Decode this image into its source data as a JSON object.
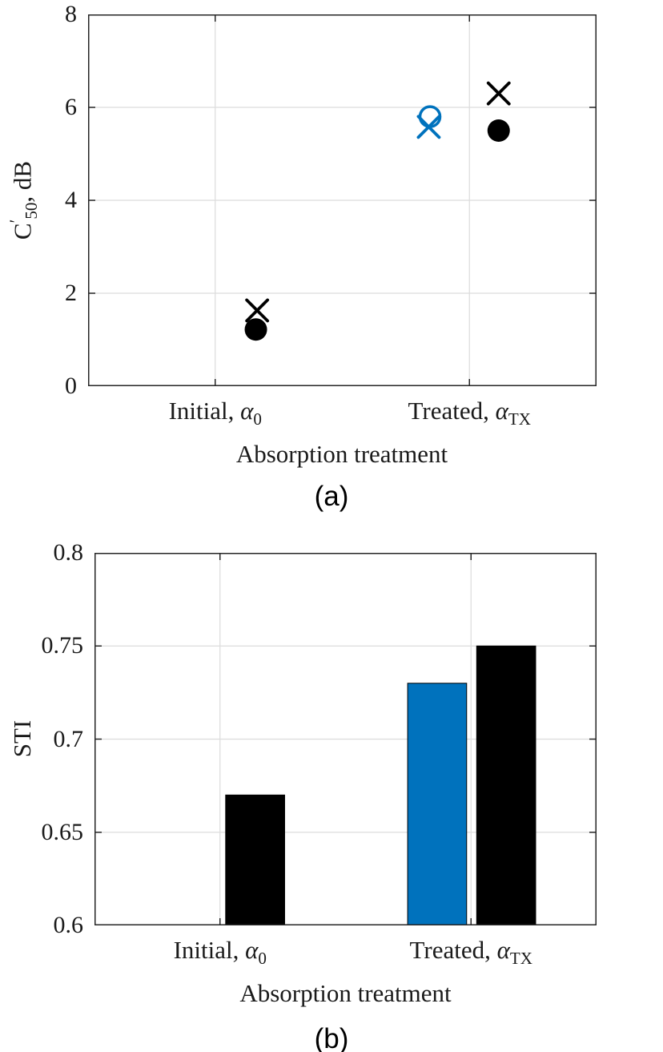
{
  "figure": {
    "captions": [
      "(a)",
      "(b)"
    ],
    "colors": {
      "blue": "#0072BD",
      "black": "#000000",
      "grid": "#dcdcdc",
      "axis": "#262626"
    }
  },
  "chart_data": [
    {
      "type": "scatter",
      "title": "",
      "ylabel_parts": {
        "base": "C",
        "prime": "′",
        "sub": "50",
        "suffix": ", dB"
      },
      "xlabel": "Absorption treatment",
      "xticklabels": [
        {
          "prefix": "Initial, ",
          "symbol": "α",
          "sub": "0"
        },
        {
          "prefix": "Treated, ",
          "symbol": "α",
          "sub": "TX"
        }
      ],
      "xlim": [
        0.5,
        2.5
      ],
      "category_x": [
        1,
        2
      ],
      "ylim": [
        0,
        8
      ],
      "yticks": [
        0,
        2,
        4,
        6,
        8
      ],
      "ytick_labels": [
        "0",
        "2",
        "4",
        "6",
        "8"
      ],
      "grid": true,
      "legend": "none",
      "series": [
        {
          "name": "black-x-marker",
          "marker": "x",
          "color": "#000000",
          "points": [
            {
              "x": 1.165,
              "y": 1.63
            },
            {
              "x": 2.115,
              "y": 6.3
            }
          ]
        },
        {
          "name": "black-filled-circle",
          "marker": "circle-filled",
          "color": "#000000",
          "points": [
            {
              "x": 1.16,
              "y": 1.22
            },
            {
              "x": 2.115,
              "y": 5.5
            }
          ]
        },
        {
          "name": "blue-open-circle",
          "marker": "circle-open",
          "color": "#0072BD",
          "points": [
            {
              "x": 1.845,
              "y": 5.8
            }
          ]
        },
        {
          "name": "blue-x-marker",
          "marker": "x",
          "color": "#0072BD",
          "points": [
            {
              "x": 1.84,
              "y": 5.58
            }
          ]
        }
      ]
    },
    {
      "type": "bar",
      "title": "",
      "ylabel": "STI",
      "xlabel": "Absorption treatment",
      "xticklabels": [
        {
          "prefix": "Initial, ",
          "symbol": "α",
          "sub": "0"
        },
        {
          "prefix": "Treated, ",
          "symbol": "α",
          "sub": "TX"
        }
      ],
      "xlim": [
        0.5,
        2.5
      ],
      "category_x": [
        1,
        2
      ],
      "categories": [
        "Initial",
        "Treated"
      ],
      "ylim": [
        0.6,
        0.8
      ],
      "yticks": [
        0.6,
        0.65,
        0.7,
        0.75,
        0.8
      ],
      "ytick_labels": [
        "0.6",
        "0.65",
        "0.7",
        "0.75",
        "0.8"
      ],
      "grid": true,
      "bar_width": 0.235,
      "series": [
        {
          "name": "blue-bars",
          "color": "#0072BD",
          "offset": -0.135,
          "values": [
            null,
            0.73
          ]
        },
        {
          "name": "black-bars",
          "color": "#000000",
          "offset": 0.14,
          "values": [
            0.67,
            0.75
          ]
        }
      ]
    }
  ]
}
